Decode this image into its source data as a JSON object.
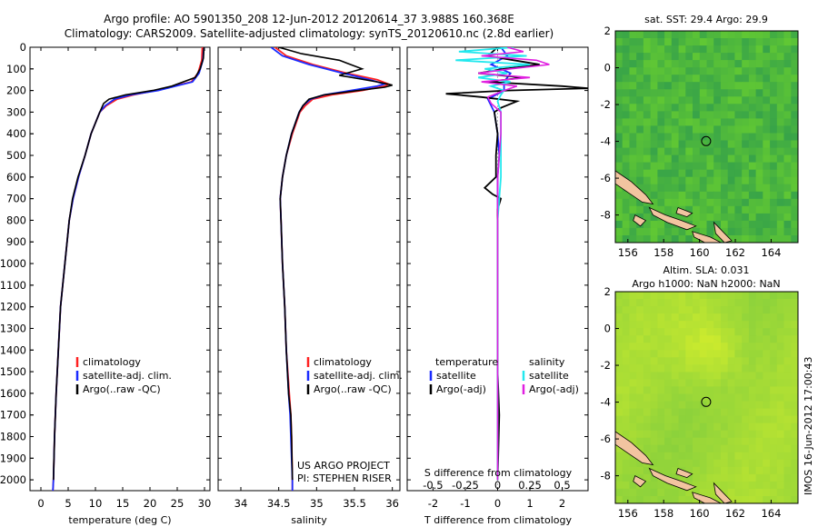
{
  "title_line1": "Argo profile: AO 5901350_208 12-Jun-2012 20120614_37 3.988S 160.368E",
  "title_line2": "Climatology: CARS2009. Satellite-adjusted climatology: synTS_20120610.nc (2.8d earlier)",
  "depth_ticks": [
    "0",
    "100",
    "200",
    "300",
    "400",
    "500",
    "600",
    "700",
    "800",
    "900",
    "1000",
    "1100",
    "1200",
    "1300",
    "1400",
    "1500",
    "1600",
    "1700",
    "1800",
    "1900",
    "2000"
  ],
  "colors": {
    "climatology": "#ff2020",
    "satellite": "#1a2bff",
    "argo": "#000000",
    "sat_salinity": "#22e8ee",
    "argo_salinity": "#e020e0",
    "land": "#f2c4a0"
  },
  "chart_data": [
    {
      "type": "line",
      "name": "temperature-profile",
      "xlabel": "temperature (deg C)",
      "ylim": [
        2050,
        0
      ],
      "xlim": [
        -2,
        31
      ],
      "xticks": [
        0,
        5,
        10,
        15,
        20,
        25,
        30
      ],
      "legend": [
        "climatology",
        "satellite-adj. clim.",
        "Argo(..raw -QC)"
      ],
      "legend_position": "lower-left",
      "series": [
        {
          "name": "climatology",
          "depth": [
            0,
            60,
            120,
            160,
            200,
            220,
            240,
            270,
            300,
            400,
            500,
            600,
            700,
            800,
            1000,
            1200,
            1400,
            1600,
            1800,
            2000,
            2050
          ],
          "values": [
            29.6,
            29.5,
            28.8,
            27.6,
            21,
            17,
            14,
            12,
            10.8,
            9.2,
            8.1,
            6.9,
            5.9,
            5.2,
            4.4,
            3.6,
            3.2,
            2.8,
            2.5,
            2.3,
            2.2
          ]
        },
        {
          "name": "satellite-adj. clim.",
          "depth": [
            0,
            60,
            120,
            160,
            200,
            220,
            240,
            270,
            300,
            400,
            500,
            600,
            700,
            800,
            1000,
            1200,
            1400,
            1600,
            1800,
            2000,
            2050
          ],
          "values": [
            29.9,
            29.7,
            29,
            27.8,
            21.5,
            16.5,
            13.5,
            11.8,
            10.8,
            9.2,
            8.1,
            6.9,
            5.9,
            5.2,
            4.4,
            3.6,
            3.2,
            2.8,
            2.5,
            2.3,
            2.2
          ]
        },
        {
          "name": "Argo(..raw -QC)",
          "depth": [
            0,
            50,
            100,
            140,
            180,
            200,
            220,
            240,
            260,
            300,
            400,
            500,
            600,
            700,
            800,
            1000,
            1200,
            1400,
            1600,
            1800,
            2000
          ],
          "values": [
            29.9,
            29.8,
            29.2,
            28.3,
            24,
            20.5,
            15.5,
            12.5,
            11.5,
            10.8,
            9.2,
            8.1,
            6.8,
            5.8,
            5.2,
            4.4,
            3.6,
            3.2,
            2.8,
            2.5,
            2.3
          ]
        }
      ]
    },
    {
      "type": "line",
      "name": "salinity-profile",
      "xlabel": "salinity",
      "ylim": [
        2050,
        0
      ],
      "xlim": [
        33.7,
        36.1
      ],
      "xticks": [
        34,
        34.5,
        35,
        35.5,
        36
      ],
      "legend": [
        "climatology",
        "satellite-adj. clim.",
        "Argo(..raw -QC)"
      ],
      "legend_position": "lower-left",
      "footer": [
        "US ARGO PROJECT",
        "PI: STEPHEN RISER"
      ],
      "series": [
        {
          "name": "climatology",
          "depth": [
            0,
            40,
            80,
            120,
            150,
            170,
            180,
            200,
            220,
            240,
            270,
            300,
            400,
            500,
            600,
            700,
            800,
            1000,
            1200,
            1400,
            1600,
            1700,
            1800,
            2000,
            2050
          ],
          "values": [
            34.45,
            34.6,
            34.95,
            35.4,
            35.8,
            35.95,
            35.9,
            35.6,
            35.2,
            34.95,
            34.85,
            34.78,
            34.68,
            34.6,
            34.55,
            34.52,
            34.53,
            34.55,
            34.58,
            34.6,
            34.64,
            34.66,
            34.67,
            34.68,
            34.68
          ]
        },
        {
          "name": "satellite-adj. clim.",
          "depth": [
            0,
            40,
            80,
            120,
            150,
            170,
            180,
            200,
            220,
            240,
            270,
            300,
            400,
            500,
            600,
            700,
            800,
            1000,
            1200,
            1400,
            1600,
            1700,
            1800,
            2000,
            2050
          ],
          "values": [
            34.4,
            34.55,
            34.9,
            35.35,
            35.7,
            35.9,
            35.8,
            35.45,
            35.1,
            34.92,
            34.82,
            34.77,
            34.67,
            34.6,
            34.55,
            34.52,
            34.53,
            34.55,
            34.58,
            34.6,
            34.63,
            34.65,
            34.66,
            34.68,
            34.68
          ]
        },
        {
          "name": "Argo(..raw -QC)",
          "depth": [
            0,
            30,
            60,
            100,
            130,
            160,
            175,
            185,
            200,
            220,
            240,
            270,
            300,
            400,
            500,
            600,
            700,
            800,
            1000,
            1200,
            1400,
            1600,
            1700,
            1800,
            2000
          ],
          "values": [
            34.5,
            34.8,
            35.3,
            35.6,
            35.3,
            35.8,
            36.0,
            35.9,
            35.55,
            35.1,
            34.9,
            34.82,
            34.77,
            34.67,
            34.6,
            34.55,
            34.52,
            34.53,
            34.55,
            34.58,
            34.6,
            34.63,
            34.66,
            34.67,
            34.68
          ]
        }
      ]
    },
    {
      "type": "line",
      "name": "difference-profile",
      "xlabel": "T difference from climatology",
      "xlabel_top": "S difference from climatology",
      "ylim": [
        2050,
        0
      ],
      "xlim": [
        -2.8,
        2.8
      ],
      "xticks": [
        -2,
        -1,
        0,
        1,
        2
      ],
      "top_ticks": [
        "-0.5",
        "-0.25",
        "0",
        "0.25",
        "0.5"
      ],
      "top_tick_positions": [
        -2,
        -1,
        0,
        1,
        2
      ],
      "legend_temperature_title": "temperature",
      "legend_salinity_title": "salinity",
      "legend_temperature": [
        "satellite",
        "Argo(-adj)"
      ],
      "legend_salinity": [
        "satellite",
        "Argo(-adj)"
      ],
      "series": [
        {
          "name": "temperature satellite",
          "depth": [
            0,
            40,
            80,
            120,
            160,
            200,
            240,
            300,
            400,
            500,
            600,
            700,
            800,
            1000,
            1500,
            2000
          ],
          "values": [
            0.1,
            0.3,
            -0.2,
            0.4,
            0.2,
            0.2,
            -0.3,
            -0.1,
            0,
            0.05,
            0,
            0,
            0,
            0,
            0,
            0
          ]
        },
        {
          "name": "temperature Argo(-adj)",
          "depth": [
            0,
            40,
            60,
            80,
            100,
            120,
            140,
            160,
            180,
            190,
            200,
            215,
            230,
            250,
            280,
            300,
            400,
            500,
            600,
            650,
            680,
            700,
            750,
            800,
            1000,
            1200,
            1500,
            1700,
            2000
          ],
          "values": [
            0,
            -0.3,
            0.5,
            1.3,
            0.2,
            -0.6,
            0.8,
            -0.3,
            2.0,
            2.8,
            0.3,
            -1.6,
            -0.5,
            0.6,
            0.1,
            -0.1,
            0,
            -0.05,
            -0.05,
            -0.4,
            -0.15,
            0.1,
            0,
            0,
            0,
            0,
            0,
            0.05,
            0
          ]
        },
        {
          "name": "salinity satellite",
          "depth": [
            0,
            20,
            40,
            60,
            80,
            100,
            120,
            140,
            160,
            180,
            200,
            220,
            250,
            300,
            400,
            600,
            800,
            1000,
            1500,
            2000
          ],
          "values": [
            0.5,
            -1.2,
            0.9,
            -1.3,
            1.0,
            -0.4,
            0.3,
            -0.6,
            0.4,
            -0.2,
            0.2,
            0.1,
            0,
            0.1,
            0.1,
            0.1,
            0,
            0,
            0,
            0
          ]
        },
        {
          "name": "salinity Argo(-adj)",
          "depth": [
            0,
            20,
            40,
            60,
            80,
            100,
            120,
            140,
            160,
            180,
            200,
            230,
            260,
            300,
            400,
            600,
            800,
            1000,
            1500,
            2000
          ],
          "values": [
            0.3,
            0.8,
            -0.5,
            1.2,
            1.6,
            0.4,
            -0.6,
            1.0,
            -0.5,
            0.6,
            0.2,
            -0.3,
            -0.2,
            0.1,
            0.1,
            0,
            0,
            0,
            0,
            0
          ]
        }
      ]
    },
    {
      "type": "heatmap",
      "name": "sst-map",
      "title": "sat. SST: 29.4  Argo: 29.9",
      "xlim": [
        155.3,
        165.5
      ],
      "ylim": [
        -9.5,
        2
      ],
      "xticks": [
        156,
        158,
        160,
        162,
        164
      ],
      "yticks": [
        2,
        0,
        -2,
        -4,
        -6,
        -8
      ],
      "argo_position": [
        160.368,
        -3.988
      ]
    },
    {
      "type": "heatmap",
      "name": "sla-map",
      "title": "Altim. SLA: 0.031",
      "subtitle": "Argo h1000: NaN h2000: NaN",
      "xlim": [
        155.3,
        165.5
      ],
      "ylim": [
        -9.5,
        2
      ],
      "xticks": [
        156,
        158,
        160,
        162,
        164
      ],
      "yticks": [
        2,
        0,
        -2,
        -4,
        -6,
        -8
      ],
      "argo_position": [
        160.368,
        -3.988
      ]
    }
  ],
  "stamp": "IMOS 16-Jun-2012 17:00:43"
}
